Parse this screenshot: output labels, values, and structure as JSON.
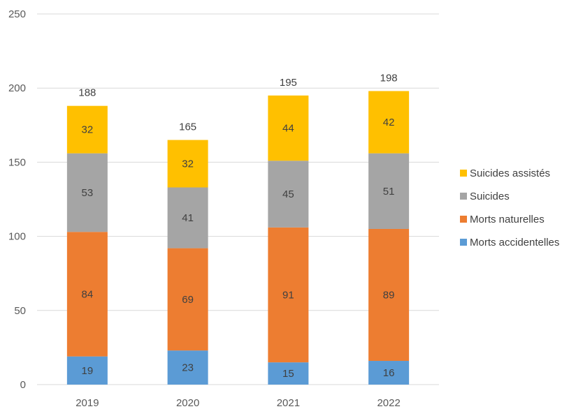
{
  "chart_data": {
    "type": "bar",
    "stacked": true,
    "title": "",
    "xlabel": "",
    "ylabel": "",
    "ylim": [
      0,
      250
    ],
    "yticks": [
      0,
      50,
      100,
      150,
      200,
      250
    ],
    "grid": true,
    "legend_position": "right",
    "categories": [
      "2019",
      "2020",
      "2021",
      "2022"
    ],
    "series": [
      {
        "name": "Morts accidentelles",
        "color": "#5B9BD5",
        "values": [
          19,
          23,
          15,
          16
        ]
      },
      {
        "name": "Morts naturelles",
        "color": "#ED7D31",
        "values": [
          84,
          69,
          91,
          89
        ]
      },
      {
        "name": "Suicides",
        "color": "#A5A5A5",
        "values": [
          53,
          41,
          45,
          51
        ]
      },
      {
        "name": "Suicides assistés",
        "color": "#FFC000",
        "values": [
          32,
          32,
          44,
          42
        ]
      }
    ],
    "totals": [
      188,
      165,
      195,
      198
    ],
    "legend_order": [
      "Suicides assistés",
      "Suicides",
      "Morts naturelles",
      "Morts accidentelles"
    ]
  }
}
